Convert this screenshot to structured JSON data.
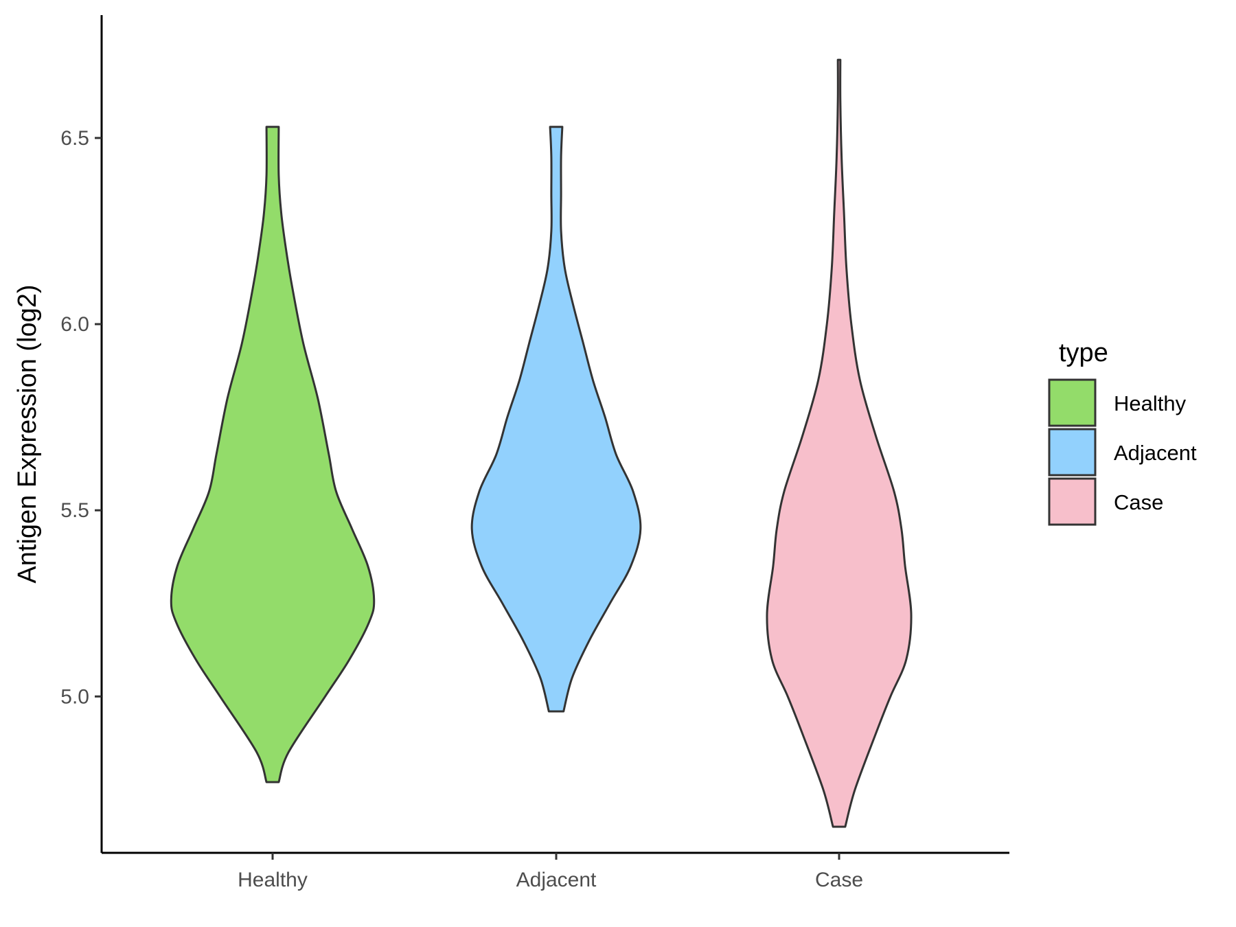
{
  "chart_data": {
    "type": "violin",
    "ylabel": "Antigen Expression (log2)",
    "xlabel": "",
    "categories": [
      "Healthy",
      "Adjacent",
      "Case"
    ],
    "ylim": [
      4.58,
      6.83
    ],
    "yticks": [
      5.0,
      5.5,
      6.0,
      6.5
    ],
    "ytick_labels": [
      "5.0",
      "5.5",
      "6.0",
      "6.5"
    ],
    "grid": false,
    "legend": {
      "title": "type",
      "placement": "right",
      "entries": [
        "Healthy",
        "Adjacent",
        "Case"
      ]
    },
    "series": [
      {
        "category": "Healthy",
        "color": "#93dc6a",
        "min": 4.77,
        "max": 6.53,
        "density": [
          [
            4.77,
            0.05
          ],
          [
            4.85,
            0.13
          ],
          [
            5.0,
            0.43
          ],
          [
            5.1,
            0.63
          ],
          [
            5.2,
            0.79
          ],
          [
            5.26,
            0.83
          ],
          [
            5.35,
            0.78
          ],
          [
            5.45,
            0.65
          ],
          [
            5.55,
            0.52
          ],
          [
            5.65,
            0.46
          ],
          [
            5.8,
            0.37
          ],
          [
            5.95,
            0.25
          ],
          [
            6.1,
            0.16
          ],
          [
            6.2,
            0.11
          ],
          [
            6.3,
            0.07
          ],
          [
            6.4,
            0.05
          ],
          [
            6.53,
            0.05
          ]
        ]
      },
      {
        "category": "Adjacent",
        "color": "#92d1fd",
        "min": 4.96,
        "max": 6.53,
        "density": [
          [
            4.96,
            0.06
          ],
          [
            5.05,
            0.13
          ],
          [
            5.15,
            0.27
          ],
          [
            5.25,
            0.44
          ],
          [
            5.35,
            0.61
          ],
          [
            5.45,
            0.69
          ],
          [
            5.55,
            0.63
          ],
          [
            5.65,
            0.49
          ],
          [
            5.75,
            0.4
          ],
          [
            5.85,
            0.3
          ],
          [
            5.95,
            0.22
          ],
          [
            6.05,
            0.14
          ],
          [
            6.15,
            0.07
          ],
          [
            6.25,
            0.04
          ],
          [
            6.35,
            0.04
          ],
          [
            6.45,
            0.04
          ],
          [
            6.53,
            0.05
          ]
        ]
      },
      {
        "category": "Case",
        "color": "#f7bfcb",
        "min": 4.65,
        "max": 6.71,
        "density": [
          [
            4.65,
            0.05
          ],
          [
            4.75,
            0.13
          ],
          [
            4.9,
            0.3
          ],
          [
            5.0,
            0.42
          ],
          [
            5.1,
            0.55
          ],
          [
            5.22,
            0.59
          ],
          [
            5.35,
            0.54
          ],
          [
            5.45,
            0.51
          ],
          [
            5.55,
            0.45
          ],
          [
            5.7,
            0.3
          ],
          [
            5.85,
            0.17
          ],
          [
            6.0,
            0.1
          ],
          [
            6.15,
            0.06
          ],
          [
            6.3,
            0.04
          ],
          [
            6.45,
            0.02
          ],
          [
            6.6,
            0.01
          ],
          [
            6.71,
            0.01
          ]
        ]
      }
    ]
  }
}
